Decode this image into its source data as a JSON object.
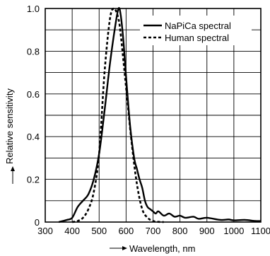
{
  "chart_data": {
    "type": "line",
    "title": "",
    "xlabel": "Wavelength, nm",
    "ylabel": "Relative sensitivity",
    "xlim": [
      300,
      1100
    ],
    "ylim": [
      0,
      1.0
    ],
    "xticks": [
      300,
      400,
      500,
      600,
      700,
      800,
      900,
      1000,
      1100
    ],
    "yticks": [
      0,
      0.2,
      0.4,
      0.6,
      0.8,
      1.0
    ],
    "x_tick_labels": [
      "300",
      "400",
      "500",
      "600",
      "700",
      "800",
      "900",
      "1000",
      "1100"
    ],
    "y_tick_labels": [
      "0",
      "0.2",
      "0.4",
      "0.6",
      "0.8",
      "1.0"
    ],
    "grid": true,
    "legend_position": "top-right",
    "series": [
      {
        "name": "NaPiCa spectral",
        "style": "solid",
        "color": "#000000",
        "points": [
          [
            350,
            0.0
          ],
          [
            380,
            0.01
          ],
          [
            400,
            0.02
          ],
          [
            420,
            0.07
          ],
          [
            440,
            0.1
          ],
          [
            460,
            0.13
          ],
          [
            480,
            0.2
          ],
          [
            500,
            0.32
          ],
          [
            520,
            0.52
          ],
          [
            540,
            0.74
          ],
          [
            560,
            0.92
          ],
          [
            572,
            1.0
          ],
          [
            580,
            0.97
          ],
          [
            590,
            0.85
          ],
          [
            600,
            0.68
          ],
          [
            615,
            0.45
          ],
          [
            630,
            0.3
          ],
          [
            640,
            0.25
          ],
          [
            650,
            0.2
          ],
          [
            660,
            0.16
          ],
          [
            670,
            0.1
          ],
          [
            680,
            0.07
          ],
          [
            690,
            0.06
          ],
          [
            700,
            0.05
          ],
          [
            710,
            0.04
          ],
          [
            720,
            0.05
          ],
          [
            740,
            0.03
          ],
          [
            760,
            0.04
          ],
          [
            780,
            0.025
          ],
          [
            800,
            0.03
          ],
          [
            820,
            0.02
          ],
          [
            850,
            0.025
          ],
          [
            870,
            0.015
          ],
          [
            900,
            0.02
          ],
          [
            950,
            0.01
          ],
          [
            980,
            0.012
          ],
          [
            1000,
            0.008
          ],
          [
            1040,
            0.01
          ],
          [
            1080,
            0.005
          ],
          [
            1100,
            0.005
          ]
        ]
      },
      {
        "name": "Human spectral",
        "style": "dashed",
        "color": "#000000",
        "points": [
          [
            400,
            0.0
          ],
          [
            420,
            0.005
          ],
          [
            440,
            0.02
          ],
          [
            460,
            0.06
          ],
          [
            480,
            0.14
          ],
          [
            500,
            0.32
          ],
          [
            520,
            0.7
          ],
          [
            540,
            0.95
          ],
          [
            555,
            1.0
          ],
          [
            570,
            0.96
          ],
          [
            580,
            0.88
          ],
          [
            600,
            0.63
          ],
          [
            620,
            0.38
          ],
          [
            640,
            0.18
          ],
          [
            660,
            0.06
          ],
          [
            680,
            0.02
          ],
          [
            700,
            0.005
          ],
          [
            720,
            0.001
          ],
          [
            740,
            0.0
          ]
        ]
      }
    ]
  }
}
